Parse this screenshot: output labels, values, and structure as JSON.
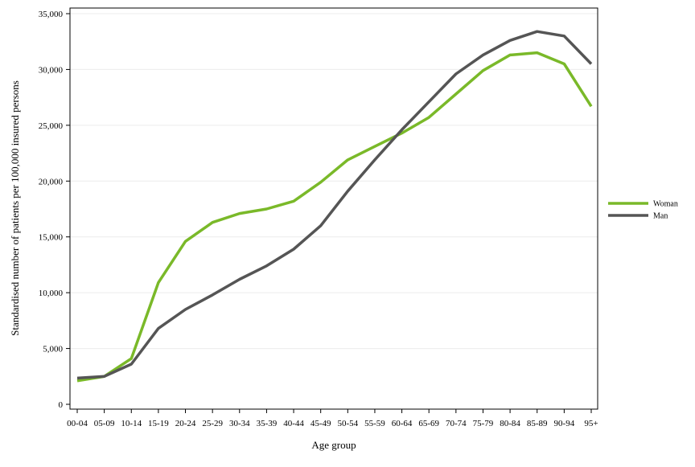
{
  "chart_data": {
    "type": "line",
    "title": "",
    "xlabel": "Age group",
    "ylabel": "Standardised number of patients per 100,000 insured persons",
    "categories": [
      "00-04",
      "05-09",
      "10-14",
      "15-19",
      "20-24",
      "25-29",
      "30-34",
      "35-39",
      "40-44",
      "45-49",
      "50-54",
      "55-59",
      "60-64",
      "65-69",
      "70-74",
      "75-79",
      "80-84",
      "85-89",
      "90-94",
      "95+"
    ],
    "ylim": [
      0,
      35000
    ],
    "yticks": [
      0,
      5000,
      10000,
      15000,
      20000,
      25000,
      30000,
      35000
    ],
    "ytick_labels": [
      "0",
      "5,000",
      "10,000",
      "15,000",
      "20,000",
      "25,000",
      "30,000",
      "35,000"
    ],
    "grid": true,
    "legend_position": "right",
    "series": [
      {
        "name": "Woman",
        "color": "#7ab929",
        "values": [
          2100,
          2500,
          4100,
          10900,
          14600,
          16300,
          17100,
          17500,
          18200,
          19900,
          21900,
          23100,
          24300,
          25700,
          27800,
          29900,
          31300,
          31500,
          30500,
          26700
        ]
      },
      {
        "name": "Man",
        "color": "#555555",
        "values": [
          2350,
          2500,
          3600,
          6800,
          8500,
          9800,
          11200,
          12400,
          13900,
          16000,
          19100,
          21900,
          24600,
          27100,
          29600,
          31300,
          32600,
          33400,
          33000,
          30500
        ]
      }
    ]
  }
}
